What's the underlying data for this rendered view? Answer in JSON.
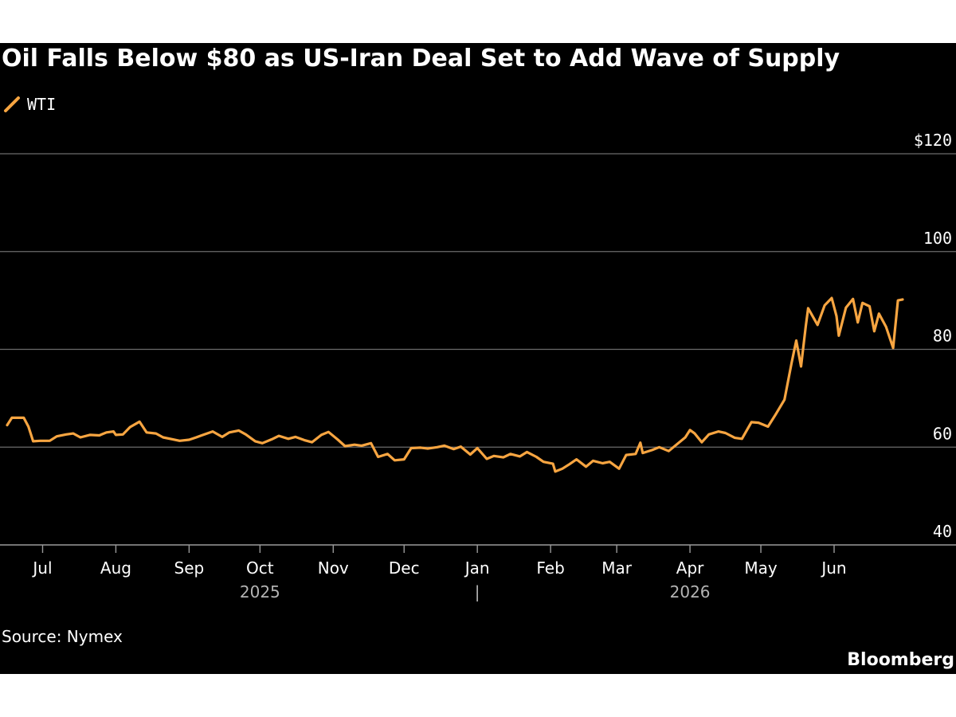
{
  "chart_data": {
    "type": "line",
    "title": "Oil Falls Below $80 as US-Iran Deal Set to Add Wave of Supply",
    "xlabel": "",
    "ylabel": "",
    "ylim": [
      40,
      120
    ],
    "y_ticks": [
      {
        "value": 120,
        "label": "$120"
      },
      {
        "value": 100,
        "label": "100"
      },
      {
        "value": 80,
        "label": "80"
      },
      {
        "value": 60,
        "label": "60"
      },
      {
        "value": 40,
        "label": "40"
      }
    ],
    "x_range": [
      "2025-06-16",
      "2026-06-30"
    ],
    "x_ticks": [
      {
        "date": "2025-07-01",
        "label": "Jul"
      },
      {
        "date": "2025-08-01",
        "label": "Aug"
      },
      {
        "date": "2025-09-01",
        "label": "Sep"
      },
      {
        "date": "2025-10-01",
        "label": "Oct"
      },
      {
        "date": "2025-11-01",
        "label": "Nov"
      },
      {
        "date": "2025-12-01",
        "label": "Dec"
      },
      {
        "date": "2026-01-01",
        "label": "Jan"
      },
      {
        "date": "2026-02-01",
        "label": "Feb"
      },
      {
        "date": "2026-03-01",
        "label": "Mar"
      },
      {
        "date": "2026-04-01",
        "label": "Apr"
      },
      {
        "date": "2026-05-01",
        "label": "May"
      },
      {
        "date": "2026-06-01",
        "label": "Jun"
      }
    ],
    "year_labels": [
      {
        "date": "2025-10-01",
        "label": "2025"
      },
      {
        "date": "2026-01-01",
        "label": "|"
      },
      {
        "date": "2026-04-01",
        "label": "2026"
      }
    ],
    "grid": true,
    "legend_position": "top-left",
    "series": [
      {
        "name": "WTI",
        "color": "#f7a541",
        "points": [
          [
            "2025-06-16",
            64.5
          ],
          [
            "2025-06-18",
            66.0
          ],
          [
            "2025-06-23",
            66.0
          ],
          [
            "2025-06-25",
            64.2
          ],
          [
            "2025-06-27",
            61.2
          ],
          [
            "2025-06-30",
            61.3
          ],
          [
            "2025-07-04",
            61.3
          ],
          [
            "2025-07-07",
            62.2
          ],
          [
            "2025-07-11",
            62.6
          ],
          [
            "2025-07-14",
            62.8
          ],
          [
            "2025-07-17",
            62.0
          ],
          [
            "2025-07-21",
            62.5
          ],
          [
            "2025-07-25",
            62.4
          ],
          [
            "2025-07-28",
            63.0
          ],
          [
            "2025-07-31",
            63.2
          ],
          [
            "2025-08-01",
            62.5
          ],
          [
            "2025-08-04",
            62.6
          ],
          [
            "2025-08-07",
            64.1
          ],
          [
            "2025-08-11",
            65.2
          ],
          [
            "2025-08-14",
            63.0
          ],
          [
            "2025-08-18",
            62.8
          ],
          [
            "2025-08-21",
            62.0
          ],
          [
            "2025-08-25",
            61.6
          ],
          [
            "2025-08-28",
            61.3
          ],
          [
            "2025-09-01",
            61.5
          ],
          [
            "2025-09-04",
            62.0
          ],
          [
            "2025-09-08",
            62.7
          ],
          [
            "2025-09-11",
            63.2
          ],
          [
            "2025-09-15",
            62.1
          ],
          [
            "2025-09-18",
            63.0
          ],
          [
            "2025-09-22",
            63.4
          ],
          [
            "2025-09-25",
            62.6
          ],
          [
            "2025-09-29",
            61.2
          ],
          [
            "2025-10-02",
            60.8
          ],
          [
            "2025-10-06",
            61.6
          ],
          [
            "2025-10-09",
            62.3
          ],
          [
            "2025-10-13",
            61.7
          ],
          [
            "2025-10-16",
            62.1
          ],
          [
            "2025-10-20",
            61.4
          ],
          [
            "2025-10-23",
            61.0
          ],
          [
            "2025-10-27",
            62.5
          ],
          [
            "2025-10-30",
            63.1
          ],
          [
            "2025-11-03",
            61.5
          ],
          [
            "2025-11-06",
            60.2
          ],
          [
            "2025-11-10",
            60.5
          ],
          [
            "2025-11-13",
            60.3
          ],
          [
            "2025-11-17",
            60.8
          ],
          [
            "2025-11-20",
            58.0
          ],
          [
            "2025-11-24",
            58.6
          ],
          [
            "2025-11-27",
            57.3
          ],
          [
            "2025-12-01",
            57.5
          ],
          [
            "2025-12-04",
            59.8
          ],
          [
            "2025-12-08",
            59.9
          ],
          [
            "2025-12-11",
            59.7
          ],
          [
            "2025-12-15",
            60.0
          ],
          [
            "2025-12-18",
            60.3
          ],
          [
            "2025-12-22",
            59.6
          ],
          [
            "2025-12-25",
            60.1
          ],
          [
            "2025-12-29",
            58.5
          ],
          [
            "2026-01-01",
            59.8
          ],
          [
            "2026-01-05",
            57.6
          ],
          [
            "2026-01-08",
            58.2
          ],
          [
            "2026-01-12",
            57.9
          ],
          [
            "2026-01-15",
            58.6
          ],
          [
            "2026-01-19",
            58.1
          ],
          [
            "2026-01-22",
            59.0
          ],
          [
            "2026-01-26",
            58.0
          ],
          [
            "2026-01-29",
            57.0
          ],
          [
            "2026-02-02",
            56.6
          ],
          [
            "2026-02-03",
            55.0
          ],
          [
            "2026-02-06",
            55.6
          ],
          [
            "2026-02-09",
            56.5
          ],
          [
            "2026-02-12",
            57.5
          ],
          [
            "2026-02-16",
            56.0
          ],
          [
            "2026-02-19",
            57.2
          ],
          [
            "2026-02-23",
            56.7
          ],
          [
            "2026-02-26",
            57.0
          ],
          [
            "2026-03-02",
            55.6
          ],
          [
            "2026-03-05",
            58.4
          ],
          [
            "2026-03-09",
            58.6
          ],
          [
            "2026-03-11",
            60.9
          ],
          [
            "2026-03-12",
            58.8
          ],
          [
            "2026-03-16",
            59.4
          ],
          [
            "2026-03-19",
            60.0
          ],
          [
            "2026-03-23",
            59.2
          ],
          [
            "2026-03-26",
            60.4
          ],
          [
            "2026-03-30",
            62.0
          ],
          [
            "2026-04-01",
            63.5
          ],
          [
            "2026-04-03",
            62.8
          ],
          [
            "2026-04-06",
            61.0
          ],
          [
            "2026-04-09",
            62.6
          ],
          [
            "2026-04-13",
            63.2
          ],
          [
            "2026-04-16",
            62.9
          ],
          [
            "2026-04-20",
            61.9
          ],
          [
            "2026-04-23",
            61.7
          ],
          [
            "2026-04-27",
            65.1
          ],
          [
            "2026-04-30",
            65.0
          ],
          [
            "2026-05-04",
            64.2
          ],
          [
            "2026-05-07",
            66.5
          ],
          [
            "2026-05-11",
            69.7
          ],
          [
            "2026-05-14",
            77.2
          ],
          [
            "2026-05-16",
            81.8
          ],
          [
            "2026-05-18",
            76.5
          ],
          [
            "2026-05-20",
            84.7
          ],
          [
            "2026-05-21",
            88.4
          ],
          [
            "2026-05-25",
            85.0
          ],
          [
            "2026-05-28",
            89.0
          ],
          [
            "2026-05-31",
            90.5
          ],
          [
            "2026-06-02",
            86.8
          ],
          [
            "2026-06-03",
            82.8
          ],
          [
            "2026-06-06",
            88.5
          ],
          [
            "2026-06-09",
            90.3
          ],
          [
            "2026-06-11",
            85.5
          ],
          [
            "2026-06-13",
            89.5
          ],
          [
            "2026-06-16",
            88.8
          ],
          [
            "2026-06-18",
            83.7
          ],
          [
            "2026-06-20",
            87.3
          ],
          [
            "2026-06-23",
            84.6
          ],
          [
            "2026-06-26",
            80.3
          ],
          [
            "2026-06-28",
            90.0
          ],
          [
            "2026-06-30",
            90.2
          ]
        ]
      }
    ]
  },
  "source": "Source: Nymex",
  "brand": "Bloomberg"
}
